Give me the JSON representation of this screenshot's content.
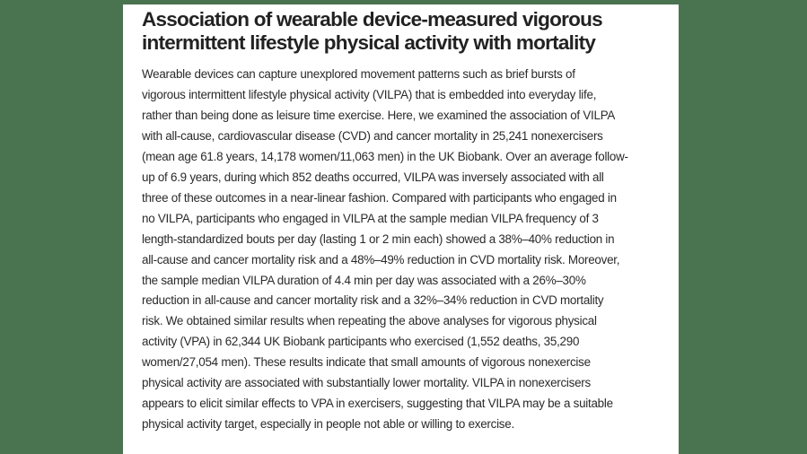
{
  "colors": {
    "background": "#4a7350",
    "panel": "#ffffff",
    "text": "#222222"
  },
  "article": {
    "title_lines": [
      "Association of wearable device-measured vigorous",
      "intermittent lifestyle physical activity with mortality"
    ],
    "abstract_lines": [
      "Wearable devices can capture unexplored movement patterns such as brief bursts of",
      "vigorous intermittent lifestyle physical activity (VILPA) that is embedded into everyday life,",
      "rather than being done as leisure time exercise. Here, we examined the association of VILPA",
      "with all-cause, cardiovascular disease (CVD) and cancer mortality in 25,241 nonexercisers",
      "(mean age 61.8 years, 14,178 women/11,063 men) in the UK Biobank. Over an average follow-",
      "up of 6.9 years, during which 852 deaths occurred, VILPA was inversely associated with all",
      "three of these outcomes in a near-linear fashion. Compared with participants who engaged in",
      "no VILPA, participants who engaged in VILPA at the sample median VILPA frequency of 3",
      "length-standardized bouts per day (lasting 1 or 2 min each) showed a 38%–40% reduction in",
      "all-cause and cancer mortality risk and a 48%–49% reduction in CVD mortality risk. Moreover,",
      "the sample median VILPA duration of 4.4 min per day was associated with a 26%–30%",
      "reduction in all-cause and cancer mortality risk and a 32%–34% reduction in CVD mortality",
      "risk. We obtained similar results when repeating the above analyses for vigorous physical",
      "activity (VPA) in 62,344 UK Biobank participants who exercised (1,552 deaths, 35,290",
      "women/27,054 men). These results indicate that small amounts of vigorous nonexercise",
      "physical activity are associated with substantially lower mortality. VILPA in nonexercisers",
      "appears to elicit similar effects to VPA in exercisers, suggesting that VILPA may be a suitable",
      "physical activity target, especially in people not able or willing to exercise."
    ]
  }
}
